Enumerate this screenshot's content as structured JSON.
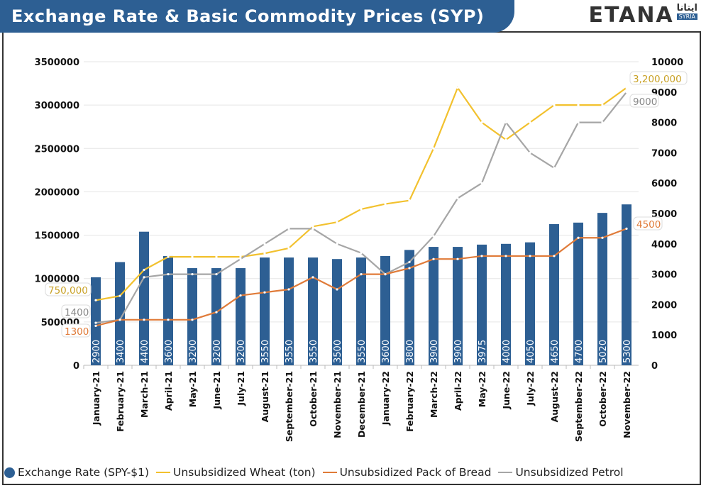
{
  "header": {
    "title": "Exchange Rate & Basic Commodity Prices (SYP)",
    "logo_text": "ETANA",
    "logo_arabic": "ايتانا",
    "logo_sub": "SYRIA"
  },
  "colors": {
    "exchange": "#2d5f93",
    "wheat": "#f2c12e",
    "bread": "#e07b39",
    "petrol": "#a6a6a6",
    "banner": "#2d5f93"
  },
  "chart_data": {
    "type": "bar+line",
    "title": "Exchange Rate & Basic Commodity Prices (SYP)",
    "categories": [
      "January-21",
      "February-21",
      "March-21",
      "April-21",
      "May-21",
      "June-21",
      "July-21",
      "August-21",
      "September-21",
      "October-21",
      "November-21",
      "December-21",
      "January-22",
      "February-22",
      "March-22",
      "April-22",
      "May-22",
      "June-22",
      "July-22",
      "August-22",
      "September-22",
      "October-22",
      "November-22"
    ],
    "left_axis": {
      "min": 0,
      "max": 3500000,
      "ticks": [
        "0",
        "500000",
        "1000000",
        "1500000",
        "2000000",
        "2500000",
        "3000000",
        "3500000"
      ]
    },
    "right_axis": {
      "min": 0,
      "max": 10000,
      "ticks": [
        "0",
        "1000",
        "2000",
        "3000",
        "4000",
        "5000",
        "6000",
        "7000",
        "8000",
        "9000",
        "10000"
      ]
    },
    "series": [
      {
        "name": "Exchange Rate (SPY-$1)",
        "type": "bar",
        "axis": "right",
        "values": [
          2900,
          3400,
          4400,
          3600,
          3200,
          3200,
          3200,
          3550,
          3550,
          3550,
          3500,
          3550,
          3600,
          3800,
          3900,
          3900,
          3975,
          4000,
          4050,
          4650,
          4700,
          5020,
          5300
        ]
      },
      {
        "name": "Unsubsidized Wheat (ton)",
        "type": "line",
        "axis": "left",
        "values": [
          750000,
          800000,
          1100000,
          1250000,
          1250000,
          1250000,
          1250000,
          1290000,
          1350000,
          1600000,
          1650000,
          1800000,
          1860000,
          1900000,
          2500000,
          3200000,
          2800000,
          2600000,
          2800000,
          3000000,
          3000000,
          3000000,
          3200000
        ],
        "labels": {
          "first": "750,000",
          "last": "3,200,000"
        }
      },
      {
        "name": "Unsubsidized Pack of Bread",
        "type": "line",
        "axis": "right",
        "values": [
          1300,
          1500,
          1500,
          1500,
          1500,
          1750,
          2300,
          2400,
          2500,
          2900,
          2500,
          3000,
          3000,
          3200,
          3500,
          3500,
          3600,
          3600,
          3600,
          3600,
          4200,
          4200,
          4500
        ],
        "labels": {
          "first": "1300",
          "last": "4500"
        }
      },
      {
        "name": "Unsubsidized Petrol",
        "type": "line",
        "axis": "right",
        "values": [
          1400,
          1500,
          2900,
          3000,
          3000,
          3000,
          3500,
          4000,
          4500,
          4500,
          4000,
          3700,
          3000,
          3400,
          4250,
          5500,
          6000,
          8000,
          7000,
          6500,
          8000,
          8000,
          9000
        ],
        "labels": {
          "first": "1400",
          "last": "9000"
        }
      }
    ],
    "grid": true,
    "legend_position": "bottom"
  }
}
